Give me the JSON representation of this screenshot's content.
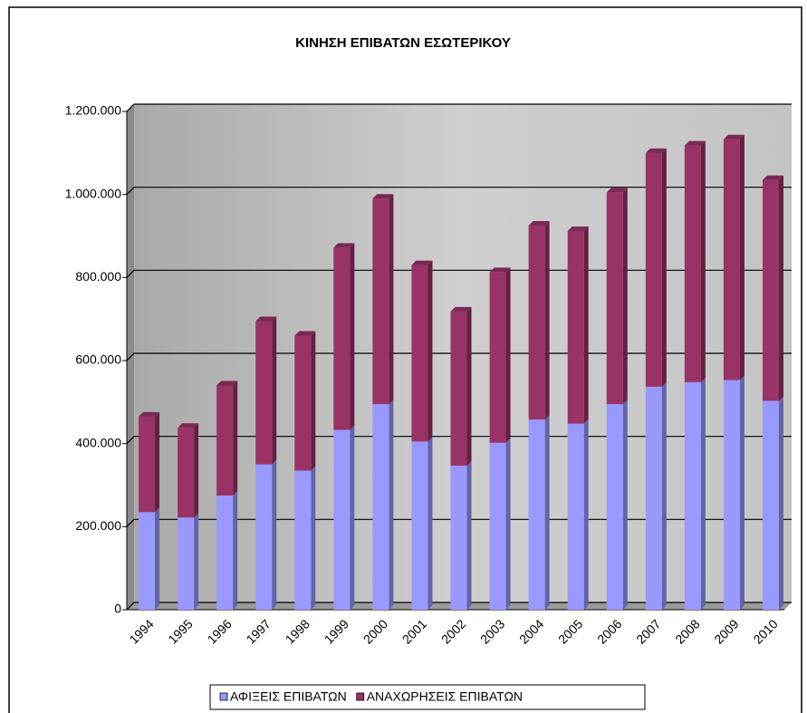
{
  "chart_data": {
    "type": "stacked_bar",
    "title": "ΚΙΝΗΣΗ ΕΠΙΒΑΤΩΝ ΕΣΩΤΕΡΙΚΟΥ",
    "categories": [
      "1994",
      "1995",
      "1996",
      "1997",
      "1998",
      "1999",
      "2000",
      "2001",
      "2002",
      "2003",
      "2004",
      "2005",
      "2006",
      "2007",
      "2008",
      "2009",
      "2010"
    ],
    "series": [
      {
        "name": "ΑΦΙΞΕΙΣ ΕΠΙΒΑΤΩΝ",
        "color": "#9999ff",
        "values": [
          235000,
          222000,
          275000,
          350000,
          335000,
          433000,
          495000,
          405000,
          347000,
          402000,
          458000,
          448000,
          495000,
          537000,
          548000,
          553000,
          503000
        ]
      },
      {
        "name": "ΑΝΑΧΩΡΗΣΕΙΣ ΕΠΙΒΑΤΩΝ",
        "color": "#993366",
        "values": [
          230000,
          216000,
          265000,
          345000,
          325000,
          439000,
          495000,
          425000,
          371000,
          411000,
          467000,
          464000,
          510000,
          563000,
          570000,
          580000,
          532000
        ]
      }
    ],
    "ylim": [
      0,
      1200000
    ],
    "yticks": [
      0,
      {
        "value": 200000,
        "label": "200.000"
      },
      {
        "value": 400000,
        "label": "400.000"
      },
      {
        "value": 600000,
        "label": "600.000"
      },
      {
        "value": 800000,
        "label": "800.000"
      },
      {
        "value": 1000000,
        "label": "1.000.000"
      },
      {
        "value": 1200000,
        "label": "1.200.000"
      }
    ],
    "grid": true,
    "legend": "bottom"
  }
}
